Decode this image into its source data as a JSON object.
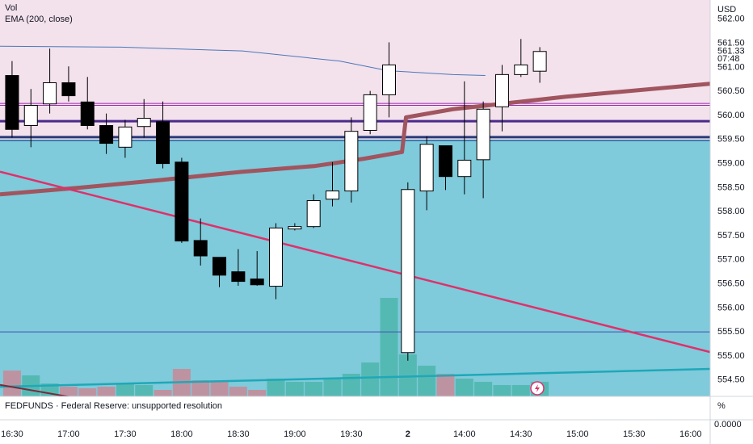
{
  "chart_data": {
    "type": "candlestick",
    "volume_name": "Vol",
    "currency": "USD",
    "countdown": "07:48",
    "x": [
      0,
      1,
      2,
      3,
      4,
      5,
      6,
      7,
      8,
      9,
      10,
      11,
      12,
      13,
      14,
      15,
      16,
      17,
      18,
      19,
      20,
      21,
      22,
      23,
      24,
      25,
      26,
      27,
      28
    ],
    "open": [
      560.83,
      559.79,
      560.24,
      560.68,
      560.28,
      559.79,
      559.34,
      559.77,
      559.87,
      559.03,
      557.4,
      557.05,
      556.75,
      556.6,
      556.45,
      557.64,
      557.69,
      558.26,
      558.43,
      559.69,
      560.43,
      555.07,
      558.43,
      559.37,
      558.73,
      559.08,
      560.18,
      560.85,
      560.92
    ],
    "high": [
      561.13,
      560.55,
      561.39,
      561.02,
      560.8,
      560.04,
      559.91,
      560.34,
      560.29,
      559.12,
      557.86,
      557.05,
      557.22,
      557.18,
      557.76,
      557.76,
      558.36,
      559.03,
      559.96,
      560.51,
      561.52,
      558.61,
      559.57,
      559.37,
      560.71,
      560.29,
      561.05,
      561.59,
      561.42
    ],
    "low": [
      559.54,
      559.34,
      560.04,
      560.29,
      559.71,
      559.2,
      559.12,
      559.54,
      558.9,
      557.35,
      556.88,
      556.43,
      556.46,
      556.46,
      556.18,
      557.61,
      557.66,
      558.11,
      558.19,
      559.61,
      559.96,
      554.9,
      558.03,
      558.45,
      558.36,
      558.28,
      559.67,
      560.8,
      560.68
    ],
    "close": [
      559.71,
      560.21,
      560.68,
      560.41,
      559.79,
      559.42,
      559.76,
      559.94,
      559.0,
      557.39,
      557.08,
      556.68,
      556.55,
      556.48,
      557.66,
      557.69,
      558.23,
      558.43,
      559.67,
      560.43,
      561.05,
      558.46,
      559.4,
      558.73,
      559.07,
      560.13,
      560.85,
      561.05,
      561.33
    ],
    "volume": [
      32,
      26,
      16,
      12,
      10,
      12,
      16,
      14,
      8,
      34,
      20,
      20,
      12,
      8,
      22,
      18,
      18,
      22,
      28,
      42,
      122,
      52,
      38,
      28,
      22,
      18,
      14,
      14,
      18
    ],
    "up_color": "#ffffff",
    "down_color": "#000000",
    "volume_up_color": "#4db6ac",
    "volume_down_color": "#c98a96",
    "xlim": [
      -0.64,
      37.04
    ],
    "xticks": [
      {
        "value": 0,
        "label": "16:30"
      },
      {
        "value": 3,
        "label": "17:00"
      },
      {
        "value": 6,
        "label": "17:30"
      },
      {
        "value": 9,
        "label": "18:00"
      },
      {
        "value": 12,
        "label": "18:30"
      },
      {
        "value": 15,
        "label": "19:00"
      },
      {
        "value": 18,
        "label": "19:30"
      },
      {
        "value": 21,
        "label": "2"
      },
      {
        "value": 24,
        "label": "14:00"
      },
      {
        "value": 27,
        "label": "14:30"
      },
      {
        "value": 30,
        "label": "15:00"
      },
      {
        "value": 33,
        "label": "15:30"
      },
      {
        "value": 36,
        "label": "16:00"
      }
    ],
    "ylim": [
      554.16,
      562.4
    ],
    "yticks": [
      {
        "value": 554.5,
        "label": "554.50"
      },
      {
        "value": 555,
        "label": "555.00"
      },
      {
        "value": 555.5,
        "label": "555.50"
      },
      {
        "value": 556,
        "label": "556.00"
      },
      {
        "value": 556.5,
        "label": "556.50"
      },
      {
        "value": 557,
        "label": "557.00"
      },
      {
        "value": 557.5,
        "label": "557.50"
      },
      {
        "value": 558,
        "label": "558.00"
      },
      {
        "value": 558.5,
        "label": "558.50"
      },
      {
        "value": 559,
        "label": "559.00"
      },
      {
        "value": 559.5,
        "label": "559.50"
      },
      {
        "value": 560,
        "label": "560.00"
      },
      {
        "value": 560.5,
        "label": "560.50"
      },
      {
        "value": 561,
        "label": "561.00"
      },
      {
        "value": 561.5,
        "label": "561.50"
      },
      {
        "value": 562,
        "label": "562.00"
      }
    ],
    "zones": [
      {
        "from": 559.5,
        "to": 562.4,
        "color": "#f3e1ec"
      },
      {
        "from": 554.16,
        "to": 559.5,
        "color": "#7fcadb"
      }
    ],
    "levels": [
      {
        "value": 560.25,
        "color": "#9c27b0",
        "width": 1
      },
      {
        "value": 560.21,
        "color": "#9c27b0",
        "width": 1
      },
      {
        "value": 559.88,
        "color": "#4a2a8a",
        "width": 3
      },
      {
        "value": 559.55,
        "color": "#2a3a7a",
        "width": 3
      },
      {
        "value": 559.48,
        "color": "#3060a0",
        "width": 1.5
      },
      {
        "value": 555.5,
        "color": "#3f51b5",
        "width": 1
      }
    ],
    "indicators": [
      {
        "name": "EMA (200, close)",
        "color": "#4a78b8",
        "width": 1,
        "x": [
          -0.64,
          5.79,
          12.23,
          17.38,
          19.96,
          23.39,
          25.11
        ],
        "values": [
          561.44,
          561.42,
          561.34,
          561.13,
          560.93,
          560.85,
          560.83
        ]
      }
    ],
    "lines": [
      {
        "color": "#a0555f",
        "width": 5,
        "x": [
          -0.64,
          3.65,
          7.94,
          12.23,
          16.09,
          18.67,
          20.69,
          20.9,
          23.39,
          29.4,
          37.04
        ],
        "values": [
          558.36,
          558.5,
          558.66,
          558.83,
          558.95,
          559.1,
          559.24,
          559.96,
          560.13,
          560.39,
          560.66
        ]
      },
      {
        "color": "#e0306a",
        "width": 2.5,
        "x": [
          -0.64,
          37.04
        ],
        "values": [
          558.83,
          555.08
        ]
      },
      {
        "color": "#1fa8b8",
        "width": 2.5,
        "x": [
          -0.64,
          37.04
        ],
        "values": [
          554.36,
          554.73
        ]
      },
      {
        "color": "#7a2a3a",
        "width": 2,
        "x": [
          -0.64,
          3.2
        ],
        "values": [
          554.4,
          554.14
        ]
      }
    ]
  },
  "lower_pane": {
    "label": "FEDFUNDS · Federal Reserve: unsupported resolution",
    "unit": "%",
    "ticks": [
      {
        "value": 0,
        "label": "0.0000"
      }
    ]
  }
}
